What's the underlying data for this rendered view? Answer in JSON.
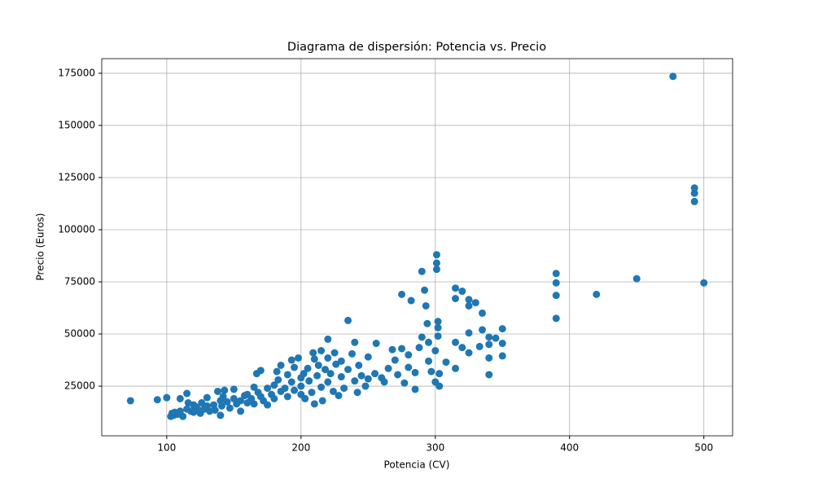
{
  "chart_data": {
    "type": "scatter",
    "title": "Diagrama de dispersión: Potencia vs. Precio",
    "x_label": "Potencia (CV)",
    "y_label": "Precio (Euros)",
    "color": "#1f77b4",
    "grid": true,
    "xlim": [
      51.6,
      521.4
    ],
    "ylim": [
      1200,
      182000
    ],
    "xticks": [
      100,
      200,
      300,
      400,
      500
    ],
    "yticks": [
      25000,
      50000,
      75000,
      100000,
      125000,
      150000,
      175000
    ],
    "x": [
      73,
      93,
      100,
      103,
      104,
      105,
      106,
      108,
      110,
      110,
      112,
      115,
      115,
      116,
      118,
      120,
      120,
      122,
      124,
      125,
      126,
      128,
      130,
      130,
      132,
      135,
      136,
      138,
      140,
      140,
      141,
      142,
      143,
      145,
      147,
      150,
      150,
      152,
      155,
      155,
      158,
      160,
      160,
      163,
      165,
      165,
      167,
      168,
      170,
      170,
      172,
      175,
      175,
      178,
      180,
      180,
      182,
      183,
      185,
      185,
      188,
      190,
      190,
      193,
      193,
      195,
      195,
      198,
      200,
      200,
      200,
      202,
      203,
      205,
      206,
      208,
      209,
      210,
      210,
      212,
      213,
      215,
      215,
      216,
      218,
      220,
      220,
      220,
      222,
      224,
      225,
      226,
      228,
      230,
      230,
      232,
      235,
      235,
      238,
      240,
      240,
      242,
      243,
      245,
      248,
      250,
      250,
      255,
      256,
      260,
      262,
      265,
      268,
      270,
      272,
      275,
      275,
      277,
      280,
      280,
      282,
      285,
      285,
      288,
      290,
      290,
      292,
      293,
      294,
      295,
      295,
      297,
      300,
      300,
      301,
      301,
      301,
      302,
      302,
      302,
      303,
      303,
      308,
      315,
      315,
      315,
      315,
      320,
      320,
      325,
      325,
      325,
      325,
      330,
      333,
      335,
      335,
      340,
      340,
      340,
      340,
      345,
      350,
      350,
      350,
      390,
      390,
      390,
      390,
      420,
      450,
      477,
      493,
      493,
      493,
      500
    ],
    "values": [
      18000,
      18500,
      19500,
      10500,
      12000,
      11000,
      12500,
      11500,
      13000,
      19000,
      10500,
      14000,
      21500,
      17000,
      13000,
      16000,
      12500,
      15000,
      13500,
      12000,
      17000,
      14000,
      15500,
      19500,
      13000,
      16000,
      13500,
      22500,
      18000,
      11000,
      15500,
      20000,
      23000,
      17500,
      14500,
      19000,
      23500,
      16500,
      18000,
      13000,
      20500,
      17000,
      21000,
      19000,
      24500,
      16500,
      31000,
      22000,
      20000,
      32500,
      18000,
      24000,
      16000,
      21000,
      25500,
      19000,
      32000,
      28000,
      22500,
      35000,
      24000,
      30500,
      20000,
      37500,
      27000,
      23000,
      34000,
      38500,
      29000,
      25000,
      21000,
      31000,
      19000,
      33500,
      27500,
      22000,
      41000,
      16500,
      38000,
      30000,
      35000,
      24500,
      42000,
      18000,
      33000,
      47500,
      27000,
      38500,
      31000,
      22500,
      41000,
      35500,
      20500,
      29500,
      37000,
      24000,
      56500,
      33000,
      40500,
      27500,
      46000,
      22000,
      35000,
      30000,
      25000,
      39000,
      28500,
      31000,
      45500,
      29000,
      27000,
      33500,
      42500,
      37500,
      30500,
      69000,
      43000,
      26500,
      34000,
      40000,
      66000,
      23500,
      31500,
      43500,
      80000,
      48500,
      71000,
      63500,
      55000,
      46000,
      37000,
      32000,
      42000,
      27000,
      88000,
      84000,
      81000,
      56000,
      53000,
      49000,
      31000,
      25000,
      36500,
      72000,
      67000,
      46000,
      33500,
      70500,
      43500,
      50500,
      66500,
      63500,
      41000,
      65000,
      44000,
      60000,
      52000,
      48500,
      45000,
      38500,
      30500,
      48000,
      52500,
      45500,
      39500,
      79000,
      74500,
      68500,
      57500,
      69000,
      76500,
      173500,
      120000,
      117500,
      113500,
      74500
    ]
  }
}
